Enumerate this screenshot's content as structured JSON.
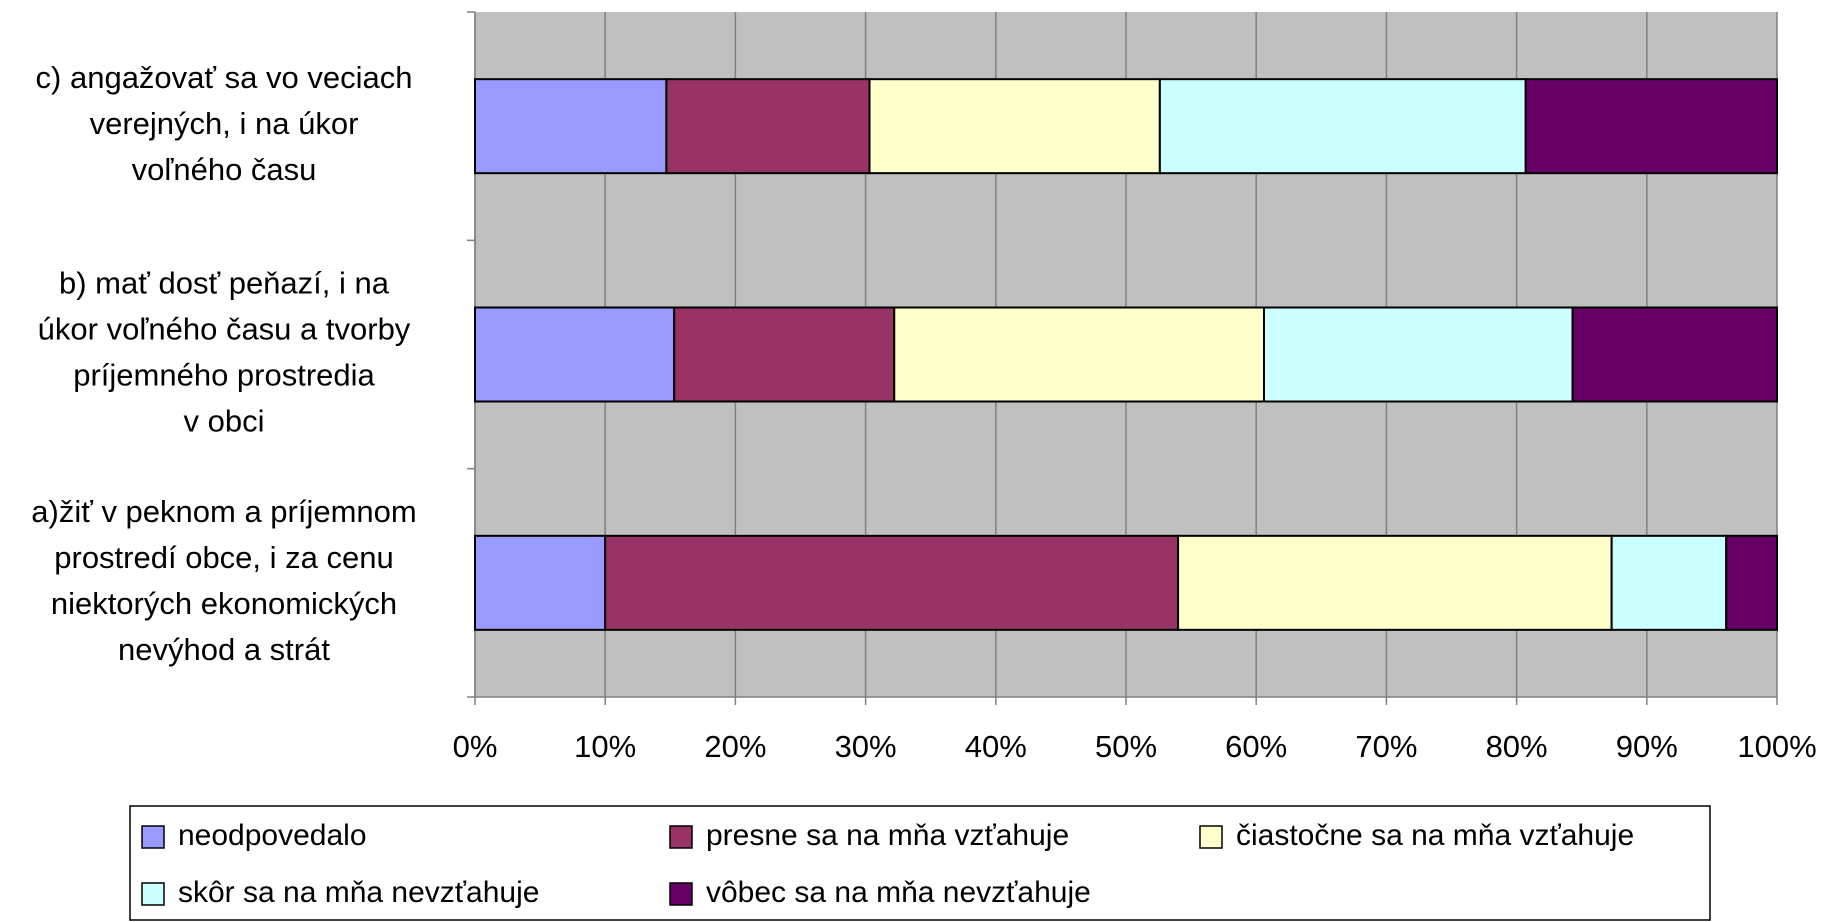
{
  "chart_data": {
    "type": "stacked-bar-horizontal",
    "categories": [
      "a)žiť v peknom a príjemnom\nprostredí obce, i za cenu\nniektorých ekonomických\nnevýhod a strát",
      "b) mať dosť peňazí, i na\núkor voľného času a tvorby\npríjemného prostredia\nv obci",
      "c) angažovať sa vo veciach\nverejných, i na úkor\nvoľného času"
    ],
    "series": [
      {
        "name": "neodpovedalo",
        "color": "#9999ff",
        "values": [
          10.0,
          15.3,
          14.7
        ]
      },
      {
        "name": "presne sa na mňa vzťahuje",
        "color": "#993366",
        "values": [
          44.0,
          16.9,
          15.6
        ]
      },
      {
        "name": "čiastočne sa na mňa vzťahuje",
        "color": "#ffffcc",
        "values": [
          33.3,
          28.4,
          22.3
        ]
      },
      {
        "name": "skôr sa na mňa nevzťahuje",
        "color": "#ccffff",
        "values": [
          8.8,
          23.7,
          28.1
        ]
      },
      {
        "name": "vôbec sa na mňa nevzťahuje",
        "color": "#660066",
        "values": [
          3.9,
          15.7,
          19.3
        ]
      }
    ],
    "xlim": [
      0,
      100
    ],
    "xticks": [
      {
        "value": 0,
        "label": "0%"
      },
      {
        "value": 10,
        "label": "10%"
      },
      {
        "value": 20,
        "label": "20%"
      },
      {
        "value": 30,
        "label": "30%"
      },
      {
        "value": 40,
        "label": "40%"
      },
      {
        "value": 50,
        "label": "50%"
      },
      {
        "value": 60,
        "label": "60%"
      },
      {
        "value": 70,
        "label": "70%"
      },
      {
        "value": 80,
        "label": "80%"
      },
      {
        "value": 90,
        "label": "90%"
      },
      {
        "value": 100,
        "label": "100%"
      }
    ],
    "grid": true,
    "legend": "bottom"
  }
}
